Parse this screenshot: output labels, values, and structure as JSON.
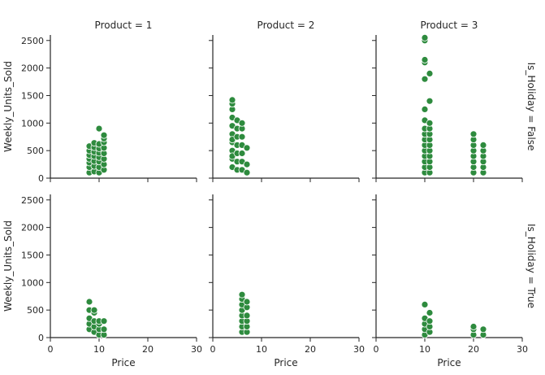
{
  "chart_data": {
    "type": "scatter",
    "layout": "facet-grid",
    "point_color": "#2e8b3e",
    "point_edge_color": "#ffffff",
    "xlabel": "Price",
    "ylabel": "Weekly_Units_Sold",
    "xlim": [
      0,
      30
    ],
    "ylim": [
      0,
      2600
    ],
    "xticks": [
      0,
      10,
      20,
      30
    ],
    "yticks": [
      0,
      500,
      1000,
      1500,
      2000,
      2500
    ],
    "col_titles": [
      "Product = 1",
      "Product = 2",
      "Product = 3"
    ],
    "row_titles": [
      "Is_Holiday = False",
      "Is_Holiday = True"
    ],
    "panels": [
      {
        "row": 0,
        "col": 0,
        "x": [
          8,
          8,
          8,
          8,
          8,
          8,
          8,
          9,
          9,
          9,
          9,
          9,
          9,
          9,
          10,
          10,
          10,
          10,
          10,
          10,
          10,
          10,
          11,
          11,
          11,
          11,
          11,
          11,
          11,
          11
        ],
        "y": [
          100,
          200,
          280,
          350,
          420,
          500,
          580,
          120,
          220,
          310,
          400,
          480,
          560,
          640,
          100,
          200,
          300,
          380,
          460,
          540,
          620,
          900,
          150,
          250,
          350,
          450,
          550,
          650,
          720,
          780
        ]
      },
      {
        "row": 0,
        "col": 1,
        "x": [
          4,
          4,
          4,
          4,
          4,
          4,
          4,
          4,
          4,
          4,
          4,
          4,
          5,
          5,
          5,
          5,
          5,
          5,
          5,
          6,
          6,
          6,
          6,
          6,
          6,
          6,
          7,
          7,
          7
        ],
        "y": [
          200,
          350,
          500,
          650,
          800,
          950,
          1100,
          1250,
          1350,
          1420,
          700,
          400,
          150,
          300,
          450,
          600,
          750,
          900,
          1050,
          150,
          300,
          450,
          600,
          750,
          900,
          1000,
          100,
          250,
          550
        ]
      },
      {
        "row": 0,
        "col": 2,
        "x": [
          10,
          10,
          10,
          10,
          10,
          10,
          10,
          10,
          10,
          10,
          10,
          10,
          10,
          10,
          10,
          10,
          11,
          11,
          11,
          11,
          11,
          11,
          11,
          11,
          11,
          11,
          11,
          11,
          20,
          20,
          20,
          20,
          20,
          20,
          20,
          20,
          22,
          22,
          22,
          22,
          22,
          22
        ],
        "y": [
          100,
          200,
          300,
          400,
          500,
          600,
          700,
          800,
          900,
          1050,
          1250,
          1800,
          2100,
          2150,
          2500,
          2550,
          100,
          200,
          300,
          400,
          500,
          600,
          700,
          800,
          900,
          1000,
          1400,
          1900,
          100,
          200,
          300,
          400,
          500,
          600,
          700,
          800,
          100,
          200,
          300,
          400,
          500,
          600
        ]
      },
      {
        "row": 1,
        "col": 0,
        "x": [
          8,
          8,
          8,
          8,
          8,
          9,
          9,
          9,
          9,
          9,
          10,
          10,
          10,
          10,
          11,
          11,
          11
        ],
        "y": [
          150,
          250,
          350,
          500,
          650,
          100,
          200,
          300,
          450,
          500,
          50,
          150,
          250,
          300,
          50,
          150,
          300
        ]
      },
      {
        "row": 1,
        "col": 1,
        "x": [
          6,
          6,
          6,
          6,
          6,
          6,
          6,
          6,
          7,
          7,
          7,
          7,
          7,
          7
        ],
        "y": [
          100,
          200,
          300,
          400,
          500,
          600,
          700,
          780,
          100,
          200,
          300,
          400,
          550,
          650
        ]
      },
      {
        "row": 1,
        "col": 2,
        "x": [
          10,
          10,
          10,
          10,
          10,
          11,
          11,
          11,
          11,
          20,
          20,
          20,
          22,
          22
        ],
        "y": [
          50,
          150,
          250,
          350,
          600,
          100,
          200,
          300,
          450,
          50,
          150,
          200,
          50,
          150
        ]
      }
    ]
  }
}
